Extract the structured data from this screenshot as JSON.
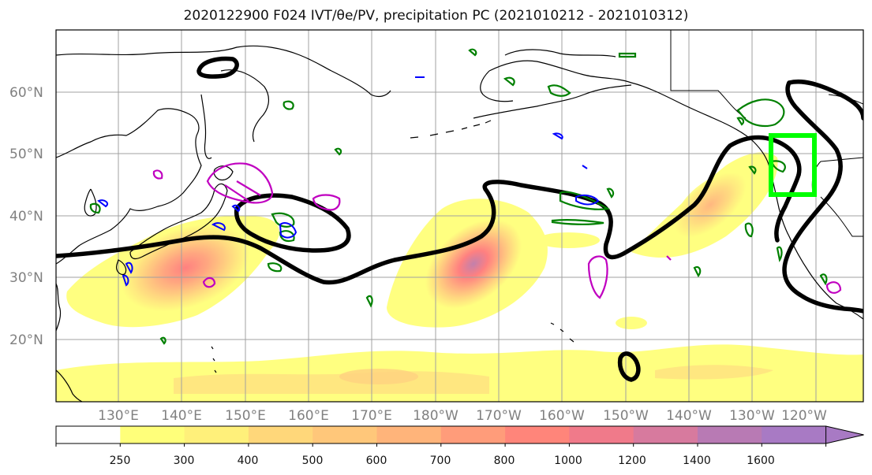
{
  "title": "2020122900 F024 IVT/θe/PV, precipitation PC (2021010212 - 2021010312)",
  "lat_labels": [
    "60°N",
    "50°N",
    "40°N",
    "30°N",
    "20°N"
  ],
  "lon_labels": [
    "130°E",
    "140°E",
    "150°E",
    "160°E",
    "170°E",
    "180°W",
    "170°W",
    "160°W",
    "150°W",
    "140°W",
    "130°W",
    "120°W"
  ],
  "colorbar": {
    "ticks": [
      "250",
      "300",
      "400",
      "500",
      "600",
      "700",
      "800",
      "1000",
      "1200",
      "1400",
      "1600"
    ],
    "colors": [
      "#ffffff",
      "#ffff7a",
      "#fff07a",
      "#ffd77a",
      "#ffc77a",
      "#ffb47a",
      "#ff9c7a",
      "#ff857a",
      "#f07a8a",
      "#d77a9e",
      "#b87ab4",
      "#a87ac4"
    ]
  },
  "legend_colors": {
    "ivt_fill": "#ff857a",
    "theta_e_contour": "#000000",
    "pv_contour_green": "#008000",
    "pv_contour_blue": "#0000ff",
    "pv_contour_magenta": "#c000c0",
    "target_box": "#00ff00"
  }
}
